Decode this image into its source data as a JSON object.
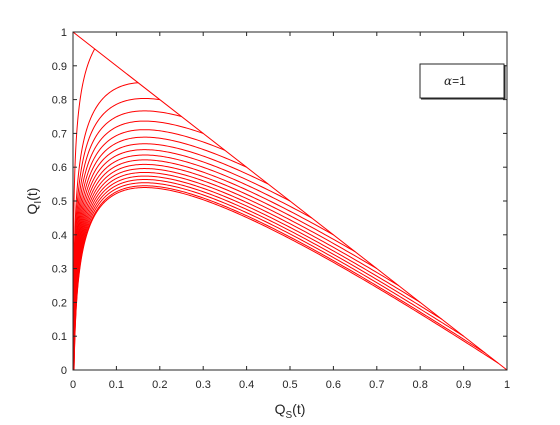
{
  "chart_data": {
    "type": "line",
    "title": "",
    "xlabel": {
      "base": "Q",
      "sub": "S",
      "suffix": "(t)"
    },
    "ylabel": {
      "base": "Q",
      "sub": "I",
      "suffix": "(t)"
    },
    "xlim": [
      0,
      1
    ],
    "ylim": [
      0,
      1
    ],
    "xticks": [
      0,
      0.1,
      0.2,
      0.3,
      0.4,
      0.5,
      0.6,
      0.7,
      0.8,
      0.9,
      1
    ],
    "yticks": [
      0,
      0.1,
      0.2,
      0.3,
      0.4,
      0.5,
      0.6,
      0.7,
      0.8,
      0.9,
      1
    ],
    "xtick_labels": [
      "0",
      "0.1",
      "0.2",
      "0.3",
      "0.4",
      "0.5",
      "0.6",
      "0.7",
      "0.8",
      "0.9",
      "1"
    ],
    "ytick_labels": [
      "0",
      "0.1",
      "0.2",
      "0.3",
      "0.4",
      "0.5",
      "0.6",
      "0.7",
      "0.8",
      "0.9",
      "1"
    ],
    "grid": false,
    "legend": {
      "symbol": "α",
      "text": "=1",
      "placement": "top-right"
    },
    "line_color": "#ff0000",
    "axis_color": "#262626",
    "boundary_line": {
      "x": [
        0,
        1
      ],
      "y": [
        1,
        0
      ]
    },
    "series": [
      {
        "start_x": 0.0,
        "start_y": 1.0
      },
      {
        "start_x": 0.05,
        "start_y": 0.95
      },
      {
        "start_x": 0.15,
        "start_y": 0.85
      },
      {
        "start_x": 0.2,
        "start_y": 0.8
      },
      {
        "start_x": 0.25,
        "start_y": 0.75
      },
      {
        "start_x": 0.3,
        "start_y": 0.7
      },
      {
        "start_x": 0.35,
        "start_y": 0.65
      },
      {
        "start_x": 0.4,
        "start_y": 0.6
      },
      {
        "start_x": 0.45,
        "start_y": 0.55
      },
      {
        "start_x": 0.5,
        "start_y": 0.5
      },
      {
        "start_x": 0.55,
        "start_y": 0.45
      },
      {
        "start_x": 0.6,
        "start_y": 0.4
      },
      {
        "start_x": 0.65,
        "start_y": 0.35
      },
      {
        "start_x": 0.7,
        "start_y": 0.3
      },
      {
        "start_x": 0.75,
        "start_y": 0.25
      },
      {
        "start_x": 0.8,
        "start_y": 0.2
      },
      {
        "start_x": 0.85,
        "start_y": 0.15
      },
      {
        "start_x": 0.9,
        "start_y": 0.1
      },
      {
        "start_x": 0.95,
        "start_y": 0.05
      },
      {
        "start_x": 0.98,
        "start_y": 0.02
      }
    ]
  }
}
